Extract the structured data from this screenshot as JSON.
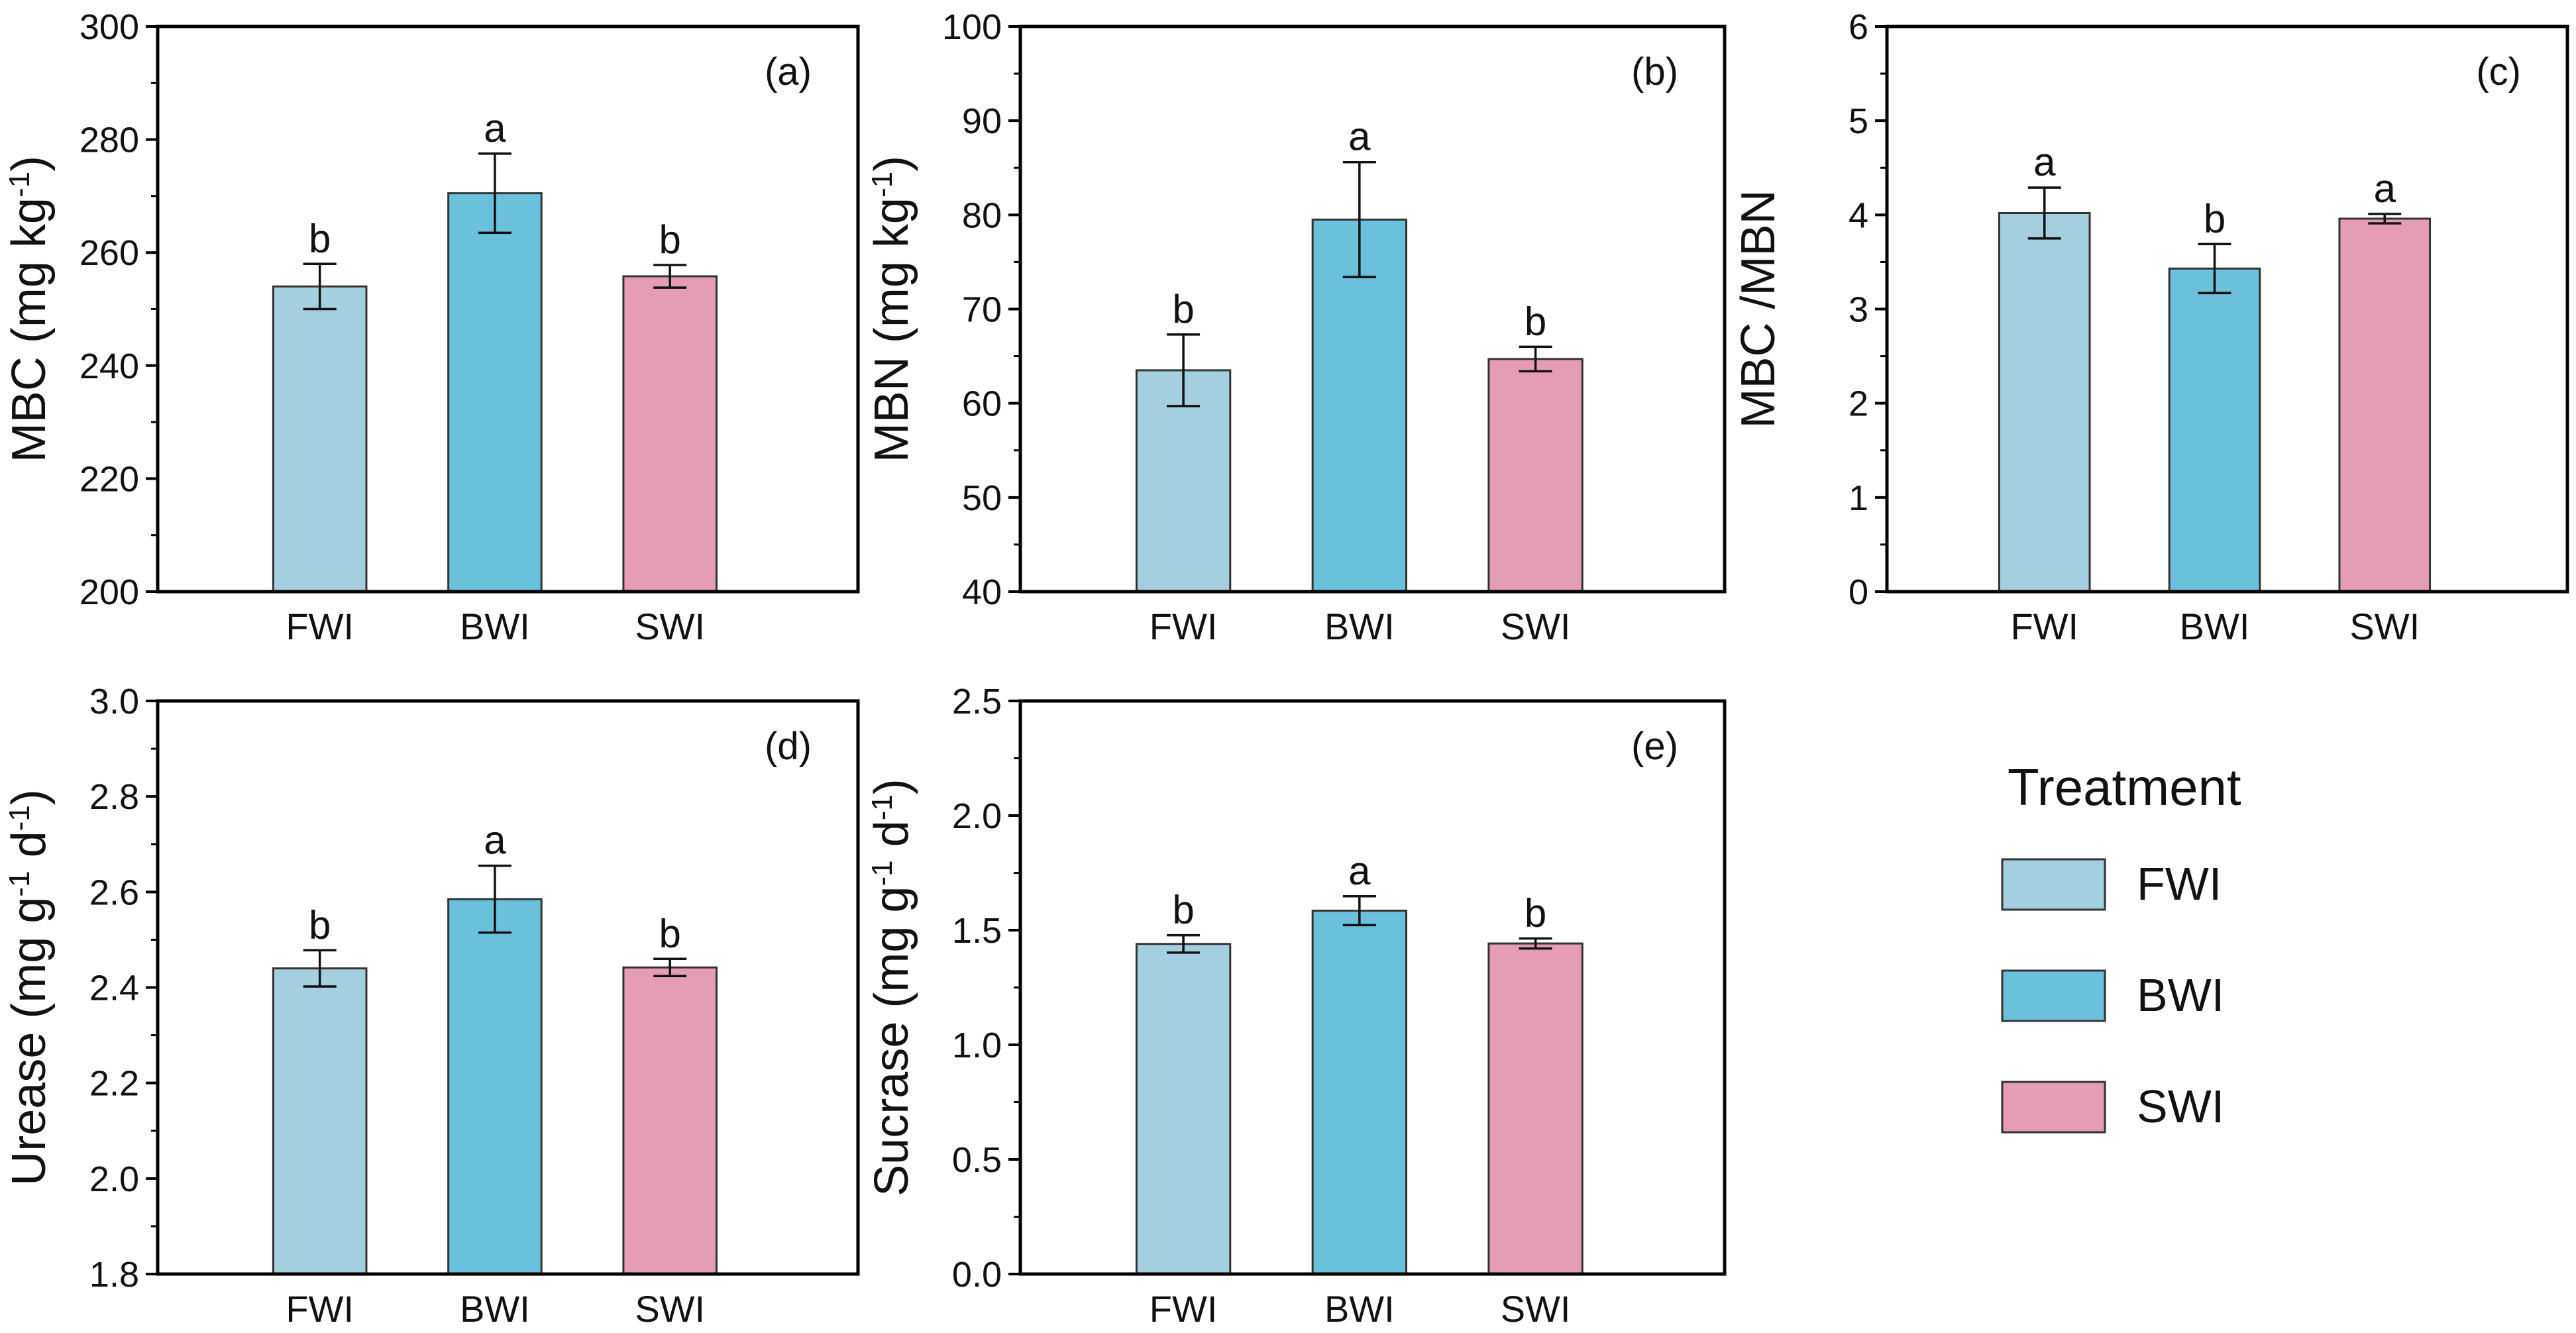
{
  "colors": {
    "FWI": "#a3cfde",
    "BWI": "#6bc0db",
    "SWI": "#e59db5"
  },
  "legend": {
    "title": "Treatment",
    "items": [
      {
        "name": "FWI",
        "color": "#a3cfde"
      },
      {
        "name": "BWI",
        "color": "#6bc0db"
      },
      {
        "name": "SWI",
        "color": "#e59db5"
      }
    ]
  },
  "chart_data": [
    {
      "type": "bar",
      "panel": "(a)",
      "ylabel_main": "MBC",
      "ylabel_unit": " (mg kg",
      "ylabel_sup": "-1",
      "ylabel_end": ")",
      "categories": [
        "FWI",
        "BWI",
        "SWI"
      ],
      "values": [
        254,
        270.5,
        255.8
      ],
      "errors": [
        4,
        7,
        2
      ],
      "significance": [
        "b",
        "a",
        "b"
      ],
      "ylim": [
        200,
        300
      ],
      "yticks": [
        200,
        220,
        240,
        260,
        280,
        300
      ],
      "ytick_labels": [
        "200",
        "220",
        "240",
        "260",
        "280",
        "300"
      ]
    },
    {
      "type": "bar",
      "panel": "(b)",
      "ylabel_main": "MBN",
      "ylabel_unit": " (mg kg",
      "ylabel_sup": "-1",
      "ylabel_end": ")",
      "categories": [
        "FWI",
        "BWI",
        "SWI"
      ],
      "values": [
        63.5,
        79.5,
        64.7
      ],
      "errors": [
        3.8,
        6.1,
        1.3
      ],
      "significance": [
        "b",
        "a",
        "b"
      ],
      "ylim": [
        40,
        100
      ],
      "yticks": [
        40,
        50,
        60,
        70,
        80,
        90,
        100
      ],
      "ytick_labels": [
        "40",
        "50",
        "60",
        "70",
        "80",
        "90",
        "100"
      ]
    },
    {
      "type": "bar",
      "panel": "(c)",
      "ylabel_main": "MBC /MBN",
      "ylabel_unit": "",
      "ylabel_sup": "",
      "ylabel_end": "",
      "categories": [
        "FWI",
        "BWI",
        "SWI"
      ],
      "values": [
        4.02,
        3.43,
        3.96
      ],
      "errors": [
        0.27,
        0.26,
        0.05
      ],
      "significance": [
        "a",
        "b",
        "a"
      ],
      "ylim": [
        0,
        6
      ],
      "yticks": [
        0,
        1,
        2,
        3,
        4,
        5,
        6
      ],
      "ytick_labels": [
        "0",
        "1",
        "2",
        "3",
        "4",
        "5",
        "6"
      ]
    },
    {
      "type": "bar",
      "panel": "(d)",
      "ylabel_main": "Urease",
      "ylabel_unit": " (mg g",
      "ylabel_sup": "-1",
      "ylabel_mid": " d",
      "ylabel_sup2": "-1",
      "ylabel_end": ")",
      "categories": [
        "FWI",
        "BWI",
        "SWI"
      ],
      "values": [
        2.44,
        2.585,
        2.442
      ],
      "errors": [
        0.038,
        0.07,
        0.018
      ],
      "significance": [
        "b",
        "a",
        "b"
      ],
      "ylim": [
        1.8,
        3.0
      ],
      "yticks": [
        1.8,
        2.0,
        2.2,
        2.4,
        2.6,
        2.8,
        3.0
      ],
      "ytick_labels": [
        "1.8",
        "2.0",
        "2.2",
        "2.4",
        "2.6",
        "2.8",
        "3.0"
      ]
    },
    {
      "type": "bar",
      "panel": "(e)",
      "ylabel_main": "Sucrase",
      "ylabel_unit": " (mg g",
      "ylabel_sup": "-1",
      "ylabel_mid": " d",
      "ylabel_sup2": "-1",
      "ylabel_end": ")",
      "categories": [
        "FWI",
        "BWI",
        "SWI"
      ],
      "values": [
        1.44,
        1.585,
        1.442
      ],
      "errors": [
        0.038,
        0.063,
        0.022
      ],
      "significance": [
        "b",
        "a",
        "b"
      ],
      "ylim": [
        0.0,
        2.5
      ],
      "yticks": [
        0.0,
        0.5,
        1.0,
        1.5,
        2.0,
        2.5
      ],
      "ytick_labels": [
        "0.0",
        "0.5",
        "1.0",
        "1.5",
        "2.0",
        "2.5"
      ]
    }
  ]
}
